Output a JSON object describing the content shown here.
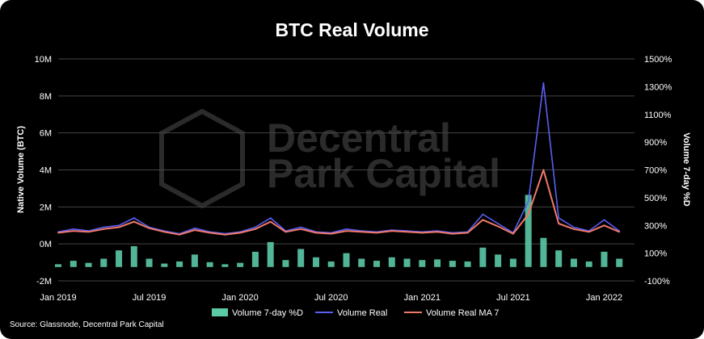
{
  "chart_data": {
    "type": "line",
    "title": "BTC Real Volume",
    "ylabel": "Native Volume (BTC)",
    "y2label": "Volume 7-day %D",
    "ylim": [
      -2000000,
      10000000
    ],
    "y2lim": [
      -100,
      1500
    ],
    "yticks": [
      "-2M",
      "0M",
      "2M",
      "4M",
      "6M",
      "8M",
      "10M"
    ],
    "y2ticks": [
      "-100%",
      "100%",
      "300%",
      "500%",
      "700%",
      "900%",
      "1100%",
      "1300%",
      "1500%"
    ],
    "xticks": [
      "Jan 2019",
      "Jul 2019",
      "Jan 2020",
      "Jul 2020",
      "Jan 2021",
      "Jul 2021",
      "Jan 2022"
    ],
    "grid": true,
    "legend_position": "bottom",
    "series": [
      {
        "name": "Volume 7-day %D",
        "kind": "bar",
        "axis": "right",
        "color": "#5cc9a7",
        "x": [
          "2019-01",
          "2019-02",
          "2019-03",
          "2019-04",
          "2019-05",
          "2019-06",
          "2019-07",
          "2019-08",
          "2019-09",
          "2019-10",
          "2019-11",
          "2019-12",
          "2020-01",
          "2020-02",
          "2020-03",
          "2020-04",
          "2020-05",
          "2020-06",
          "2020-07",
          "2020-08",
          "2020-09",
          "2020-10",
          "2020-11",
          "2020-12",
          "2021-01",
          "2021-02",
          "2021-03",
          "2021-04",
          "2021-05",
          "2021-06",
          "2021-07",
          "2021-08",
          "2021-09",
          "2021-10",
          "2021-11",
          "2021-12",
          "2022-01",
          "2022-02"
        ],
        "values": [
          20,
          45,
          30,
          60,
          120,
          150,
          60,
          25,
          40,
          90,
          35,
          20,
          30,
          110,
          180,
          50,
          130,
          70,
          40,
          100,
          60,
          45,
          70,
          60,
          50,
          55,
          45,
          40,
          140,
          90,
          60,
          520,
          210,
          120,
          60,
          40,
          110,
          60
        ]
      },
      {
        "name": "Volume Real",
        "kind": "line",
        "axis": "left",
        "color": "#5b5ff5",
        "x": [
          "2019-01",
          "2019-02",
          "2019-03",
          "2019-04",
          "2019-05",
          "2019-06",
          "2019-07",
          "2019-08",
          "2019-09",
          "2019-10",
          "2019-11",
          "2019-12",
          "2020-01",
          "2020-02",
          "2020-03",
          "2020-04",
          "2020-05",
          "2020-06",
          "2020-07",
          "2020-08",
          "2020-09",
          "2020-10",
          "2020-11",
          "2020-12",
          "2021-01",
          "2021-02",
          "2021-03",
          "2021-04",
          "2021-05",
          "2021-06",
          "2021-07",
          "2021-08",
          "2021-09",
          "2021-10",
          "2021-11",
          "2021-12",
          "2022-01",
          "2022-02"
        ],
        "values": [
          650000,
          800000,
          700000,
          900000,
          1000000,
          1400000,
          900000,
          700000,
          550000,
          850000,
          650000,
          550000,
          650000,
          900000,
          1400000,
          700000,
          900000,
          650000,
          600000,
          800000,
          700000,
          650000,
          750000,
          700000,
          650000,
          700000,
          600000,
          650000,
          1600000,
          1100000,
          600000,
          2300000,
          8700000,
          1400000,
          900000,
          700000,
          1300000,
          700000
        ]
      },
      {
        "name": "Volume Real MA 7",
        "kind": "line",
        "axis": "left",
        "color": "#f0796a",
        "x": [
          "2019-01",
          "2019-02",
          "2019-03",
          "2019-04",
          "2019-05",
          "2019-06",
          "2019-07",
          "2019-08",
          "2019-09",
          "2019-10",
          "2019-11",
          "2019-12",
          "2020-01",
          "2020-02",
          "2020-03",
          "2020-04",
          "2020-05",
          "2020-06",
          "2020-07",
          "2020-08",
          "2020-09",
          "2020-10",
          "2020-11",
          "2020-12",
          "2021-01",
          "2021-02",
          "2021-03",
          "2021-04",
          "2021-05",
          "2021-06",
          "2021-07",
          "2021-08",
          "2021-09",
          "2021-10",
          "2021-11",
          "2021-12",
          "2022-01",
          "2022-02"
        ],
        "values": [
          600000,
          700000,
          650000,
          800000,
          900000,
          1200000,
          850000,
          650000,
          500000,
          750000,
          600000,
          500000,
          600000,
          800000,
          1200000,
          650000,
          800000,
          600000,
          550000,
          700000,
          650000,
          600000,
          700000,
          650000,
          600000,
          650000,
          550000,
          600000,
          1300000,
          950000,
          550000,
          1600000,
          4000000,
          1100000,
          800000,
          650000,
          1000000,
          650000
        ]
      }
    ]
  },
  "watermark": "Decentral Park Capital",
  "source": "Source: Glassnode, Decentral Park Capital"
}
